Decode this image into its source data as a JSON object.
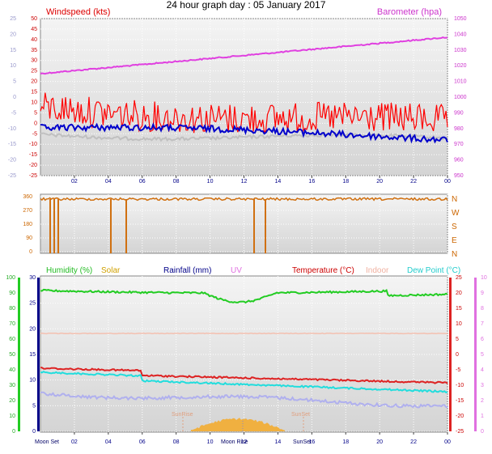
{
  "page_title": "24 hour graph day : 05 January 2017",
  "top_panel": {
    "left_label": "Windspeed (kts)",
    "right_label": "Barometer (hpa)",
    "left_ticks": [
      "50",
      "45",
      "40",
      "35",
      "30",
      "25",
      "20",
      "15",
      "10",
      "5",
      "0",
      "-5",
      "-10",
      "-15",
      "-20",
      "-25"
    ],
    "left_outer_ticks": [
      "25",
      "20",
      "15",
      "10",
      "5",
      "0",
      "-5",
      "-10",
      "-15",
      "-20",
      "-25"
    ],
    "right_ticks": [
      "1050",
      "1040",
      "1030",
      "1020",
      "1010",
      "1000",
      "990",
      "980",
      "970",
      "960",
      "950"
    ],
    "x_ticks": [
      "02",
      "04",
      "06",
      "08",
      "10",
      "12",
      "14",
      "16",
      "18",
      "20",
      "22",
      "00"
    ]
  },
  "mid_panel": {
    "left_ticks": [
      "360",
      "270",
      "180",
      "90",
      "0"
    ],
    "compass": [
      "N",
      "W",
      "S",
      "E",
      "N"
    ]
  },
  "bottom_panel": {
    "legend": [
      "Humidity (%)",
      "Solar",
      "Rainfall (mm)",
      "UV",
      "Temperature (°C)",
      "Indoor",
      "Dew Point (°C)"
    ],
    "humidity_ticks": [
      "100",
      "90",
      "80",
      "70",
      "60",
      "50",
      "40",
      "30",
      "20",
      "10",
      "0"
    ],
    "rain_ticks": [
      "30",
      "25",
      "20",
      "15",
      "10",
      "5",
      "0"
    ],
    "temp_ticks": [
      "25",
      "20",
      "15",
      "10",
      "5",
      "0",
      "-5",
      "-10",
      "-15",
      "-20",
      "-25"
    ],
    "uv_ticks": [
      "10",
      "9",
      "8",
      "7",
      "6",
      "5",
      "4",
      "3",
      "2",
      "1",
      "0"
    ],
    "x_ticks": [
      "02",
      "04",
      "06",
      "08",
      "10",
      "12",
      "14",
      "16",
      "18",
      "20",
      "22",
      "00"
    ],
    "events": {
      "moon_set": "Moon Set",
      "moon_rise": "Moon Rise",
      "sun_rise": "SunRise",
      "sun_set": "SunSet",
      "sun_rise_mid": "SunRise",
      "sun_set_mid": "SunSet"
    }
  },
  "colors": {
    "wind": "#ff0000",
    "wind_avg": "#0000cc",
    "gust": "#c0c0c0",
    "barometer": "#e040e0",
    "direction": "#d07010",
    "humidity": "#22cc22",
    "temperature": "#dd2222",
    "dew": "#22dddd",
    "indoor": "#f4c0b0",
    "rain": "#000088",
    "uv": "#e070e0",
    "solar": "#f0b040",
    "grid_bg": "#e2e2e2"
  }
}
